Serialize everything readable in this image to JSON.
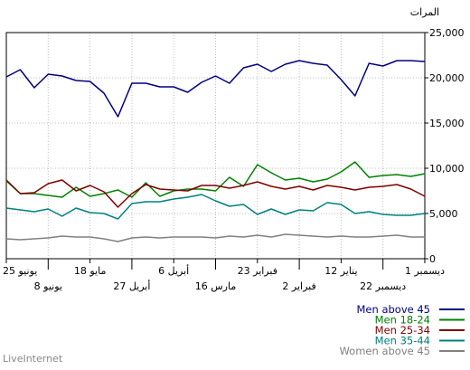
{
  "chart_data": {
    "type": "line",
    "ylabel": "المرات",
    "ylim": [
      0,
      25000
    ],
    "yticks": [
      "0",
      "5,000",
      "10,000",
      "15,000",
      "20,000",
      "25,000"
    ],
    "grid": true,
    "x_direction": "right-to-left",
    "x_tick_labels": [
      {
        "label": "1 ديسمبر",
        "row": 0
      },
      {
        "label": "22 ديسمبر",
        "row": 1
      },
      {
        "label": "12 يناير",
        "row": 0
      },
      {
        "label": "2 فبراير",
        "row": 1
      },
      {
        "label": "23 فبراير",
        "row": 0
      },
      {
        "label": "16 مارس",
        "row": 1
      },
      {
        "label": "6 أبريل",
        "row": 0
      },
      {
        "label": "27 أبريل",
        "row": 1
      },
      {
        "label": "18 مايو",
        "row": 0
      },
      {
        "label": "8 يونيو",
        "row": 1
      },
      {
        "label": "25 يونيو",
        "row": 0
      }
    ],
    "series": [
      {
        "name": "Men above 45",
        "color": "#000080",
        "values": [
          21800,
          21900,
          21900,
          21300,
          21600,
          18000,
          19800,
          21400,
          21600,
          21900,
          21500,
          20700,
          21500,
          21100,
          19400,
          20200,
          19500,
          18400,
          19000,
          19000,
          19400,
          19400,
          15700,
          18300,
          19600,
          19700,
          20200,
          20400,
          18900,
          20900,
          20100
        ]
      },
      {
        "name": "Men 18-24",
        "color": "#008000",
        "values": [
          9400,
          9100,
          9300,
          9200,
          9000,
          10700,
          9600,
          8800,
          8500,
          8900,
          8700,
          9500,
          10400,
          8000,
          9000,
          7500,
          7700,
          7700,
          7500,
          6900,
          8400,
          6800,
          7600,
          7200,
          6900,
          7900,
          6800,
          7000,
          7200,
          7200,
          8600
        ]
      },
      {
        "name": "Men 25-34",
        "color": "#800000",
        "values": [
          6900,
          7700,
          8200,
          8000,
          7900,
          7600,
          7900,
          8100,
          7600,
          8000,
          7700,
          8000,
          8500,
          8100,
          7800,
          8100,
          8100,
          7500,
          7600,
          7700,
          8200,
          7200,
          5700,
          7400,
          8100,
          7500,
          8700,
          8300,
          7300,
          7200,
          8700
        ]
      },
      {
        "name": "Men 35-44",
        "color": "#008080",
        "values": [
          5000,
          4800,
          4800,
          4900,
          5200,
          5000,
          6000,
          6200,
          5300,
          5400,
          4900,
          5500,
          4900,
          6000,
          5800,
          6400,
          7100,
          6800,
          6600,
          6300,
          6300,
          6100,
          4400,
          5000,
          5100,
          5600,
          4700,
          5500,
          5200,
          5400,
          5600
        ]
      },
      {
        "name": "Women above 45",
        "color": "#808080",
        "values": [
          2400,
          2400,
          2600,
          2500,
          2400,
          2400,
          2500,
          2400,
          2500,
          2600,
          2700,
          2400,
          2600,
          2400,
          2500,
          2300,
          2400,
          2400,
          2400,
          2300,
          2400,
          2300,
          1900,
          2200,
          2400,
          2400,
          2500,
          2300,
          2200,
          2100,
          2200
        ]
      }
    ]
  },
  "footer": {
    "brand": "LiveInternet"
  }
}
